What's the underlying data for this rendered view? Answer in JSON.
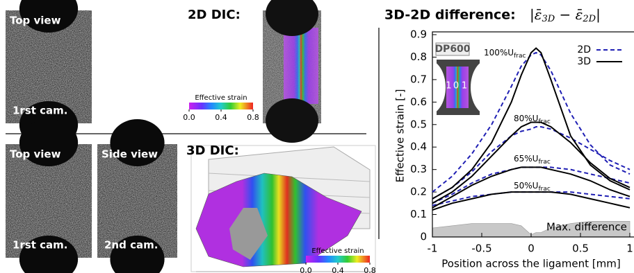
{
  "panels": {
    "top": {
      "photo": {
        "label": "Top view",
        "camera": "1rst cam."
      },
      "heading": "2D DIC:",
      "colorbar": {
        "title": "Effective strain",
        "ticks": [
          {
            "value": 0,
            "label": "0.0"
          },
          {
            "value": 0.4,
            "label": "0.4"
          },
          {
            "value": 0.8,
            "label": "0.8"
          }
        ]
      }
    },
    "bottom": {
      "photos": [
        {
          "label": "Top view",
          "camera": "1rst cam."
        },
        {
          "label": "Side view",
          "camera": "2nd cam."
        }
      ],
      "heading": "3D DIC:",
      "colorbar": {
        "title": "Effective strain",
        "ticks": [
          {
            "value": 0,
            "label": "0.0"
          },
          {
            "value": 0.4,
            "label": "0.4"
          },
          {
            "value": 0.8,
            "label": "0.8"
          }
        ]
      }
    }
  },
  "chart_data": {
    "type": "line",
    "title": "3D-2D difference:",
    "formula": [
      "|ε̄",
      "3D",
      " − ε̄",
      "2D",
      "|"
    ],
    "xlabel": "Position across the ligament [mm]",
    "ylabel": "Effective strain [-]",
    "material": "DP600",
    "inset_labels": [
      "-1",
      "0",
      "1"
    ],
    "xlim": [
      -1,
      1
    ],
    "ylim": [
      0,
      0.9
    ],
    "xticks": [
      -1,
      -0.5,
      0,
      0.5,
      1
    ],
    "yticks": [
      0,
      0.1,
      0.2,
      0.3,
      0.4,
      0.5,
      0.6,
      0.7,
      0.8,
      0.9
    ],
    "legend": "top-right",
    "x": [
      -1,
      -0.8,
      -0.6,
      -0.4,
      -0.2,
      -0.1,
      0,
      0.05,
      0.1,
      0.2,
      0.4,
      0.6,
      0.8,
      1
    ],
    "series": [
      {
        "name": "2D",
        "color": "#1f1fb4",
        "dashed": true,
        "curves": [
          [
            0.2,
            0.27,
            0.37,
            0.5,
            0.67,
            0.76,
            0.81,
            0.82,
            0.81,
            0.74,
            0.55,
            0.41,
            0.32,
            0.28
          ],
          [
            0.17,
            0.22,
            0.29,
            0.38,
            0.45,
            0.47,
            0.48,
            0.49,
            0.49,
            0.48,
            0.44,
            0.39,
            0.34,
            0.3
          ],
          [
            0.15,
            0.19,
            0.24,
            0.28,
            0.3,
            0.31,
            0.31,
            0.31,
            0.31,
            0.31,
            0.3,
            0.28,
            0.26,
            0.24
          ],
          [
            0.14,
            0.16,
            0.18,
            0.19,
            0.2,
            0.2,
            0.2,
            0.2,
            0.2,
            0.2,
            0.2,
            0.19,
            0.18,
            0.17
          ]
        ]
      },
      {
        "name": "3D",
        "color": "#000000",
        "dashed": false,
        "curves": [
          [
            0.17,
            0.22,
            0.3,
            0.42,
            0.6,
            0.72,
            0.82,
            0.84,
            0.82,
            0.7,
            0.45,
            0.32,
            0.25,
            0.21
          ],
          [
            0.15,
            0.2,
            0.27,
            0.36,
            0.45,
            0.49,
            0.51,
            0.51,
            0.51,
            0.49,
            0.42,
            0.33,
            0.26,
            0.22
          ],
          [
            0.13,
            0.18,
            0.23,
            0.27,
            0.3,
            0.31,
            0.31,
            0.31,
            0.31,
            0.3,
            0.28,
            0.25,
            0.21,
            0.18
          ],
          [
            0.12,
            0.15,
            0.17,
            0.19,
            0.2,
            0.2,
            0.2,
            0.2,
            0.2,
            0.2,
            0.19,
            0.17,
            0.15,
            0.13
          ]
        ]
      }
    ],
    "difference": {
      "name": "Max. difference",
      "color": "#c8c8c8",
      "values": [
        0.04,
        0.05,
        0.06,
        0.06,
        0.06,
        0.05,
        0.01,
        0.02,
        0.02,
        0.04,
        0.06,
        0.07,
        0.07,
        0.07
      ]
    },
    "annotations": [
      {
        "text": "100%U",
        "sub": "frac"
      },
      {
        "text": "80%U",
        "sub": "frac"
      },
      {
        "text": "65%U",
        "sub": "frac"
      },
      {
        "text": "50%U",
        "sub": "frac"
      }
    ]
  }
}
